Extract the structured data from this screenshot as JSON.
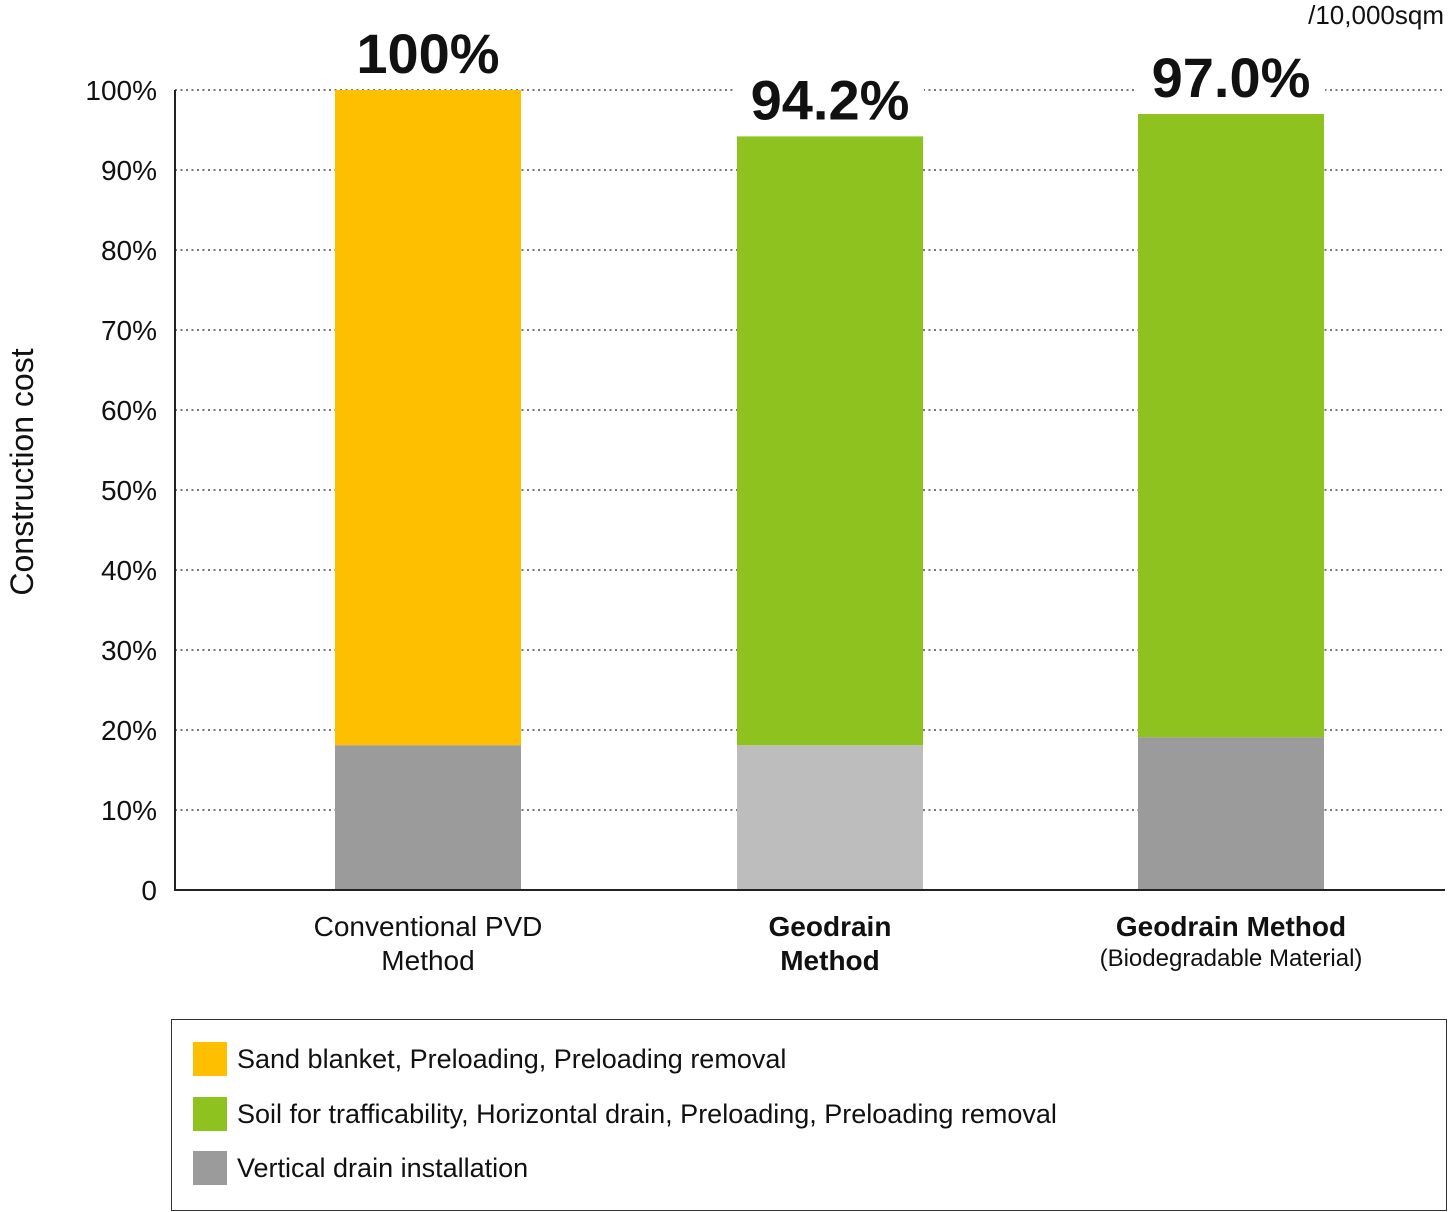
{
  "chart_data": {
    "type": "bar",
    "stacked": true,
    "unit_note": "/10,000sqm",
    "ylabel": "Construction cost",
    "ylim": [
      0,
      100
    ],
    "yticks": [
      "0",
      "10%",
      "20%",
      "30%",
      "40%",
      "50%",
      "60%",
      "70%",
      "80%",
      "90%",
      "100%"
    ],
    "grid": "dotted horizontal",
    "categories": [
      {
        "line1": "Conventional PVD",
        "line2": "Method",
        "bold": false,
        "total_label": "100%"
      },
      {
        "line1": "Geodrain",
        "line2": "Method",
        "bold": true,
        "total_label": "94.2%"
      },
      {
        "line1": "Geodrain Method",
        "line2": "(Biodegradable Material)",
        "bold": true,
        "total_label": "97.0%"
      }
    ],
    "segments": [
      [
        {
          "value": 18.1,
          "color": "#9b9b9b"
        },
        {
          "value": 81.9,
          "color": "#fdbf00"
        }
      ],
      [
        {
          "value": 18.1,
          "color": "#bdbdbd"
        },
        {
          "value": 76.1,
          "color": "#8ec21f"
        }
      ],
      [
        {
          "value": 19.1,
          "color": "#9b9b9b"
        },
        {
          "value": 77.9,
          "color": "#8ec21f"
        }
      ]
    ],
    "legend_position": "bottom",
    "legend": [
      {
        "label": "Sand blanket, Preloading, Preloading removal",
        "color": "#fdbf00"
      },
      {
        "label": "Soil for trafficability, Horizontal drain, Preloading, Preloading removal",
        "color": "#8ec21f"
      },
      {
        "label": "Vertical drain installation",
        "color": "#9b9b9b"
      }
    ]
  }
}
